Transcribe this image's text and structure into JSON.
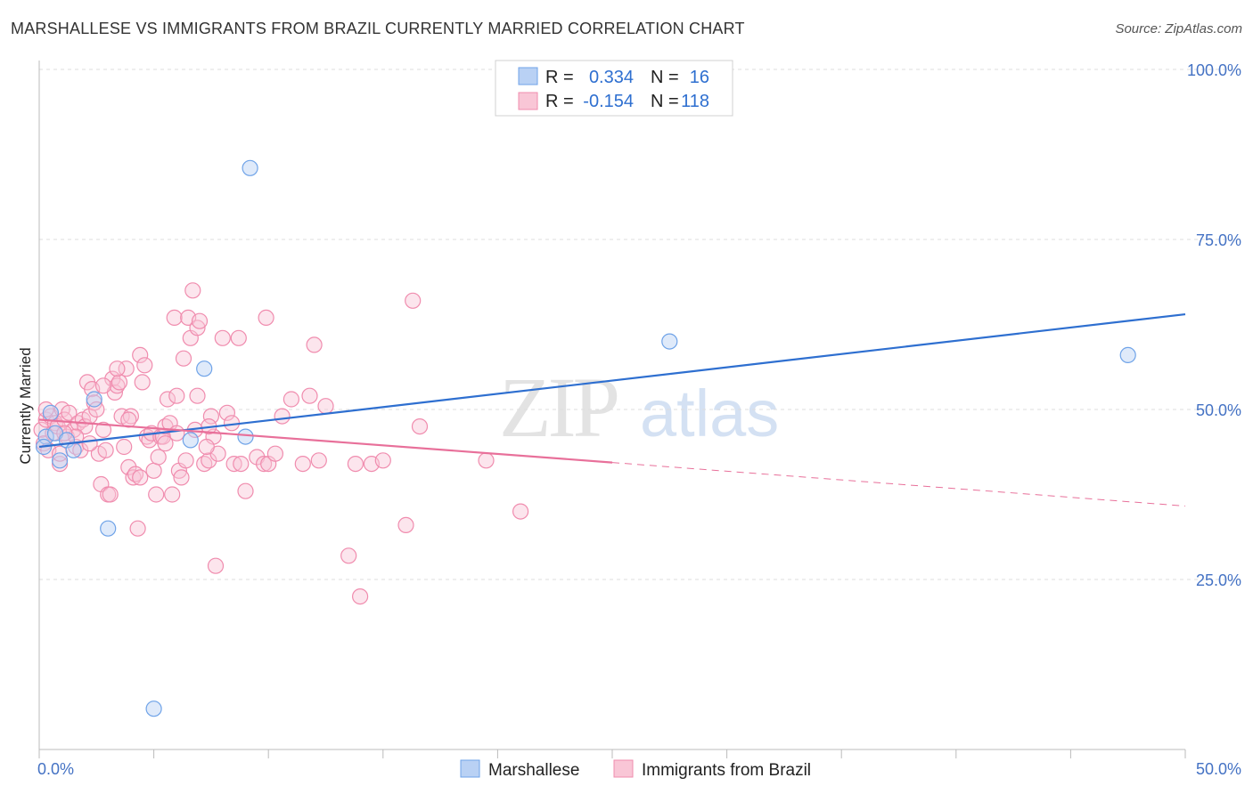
{
  "header": {
    "title": "MARSHALLESE VS IMMIGRANTS FROM BRAZIL CURRENTLY MARRIED CORRELATION CHART",
    "source": "Source: ZipAtlas.com"
  },
  "watermark": {
    "zip": "ZIP",
    "atlas": "atlas"
  },
  "chart_data": {
    "type": "scatter",
    "title": "MARSHALLESE VS IMMIGRANTS FROM BRAZIL CURRENTLY MARRIED CORRELATION CHART",
    "ylabel": "Currently Married",
    "xlabel": "",
    "xlim": [
      0,
      50
    ],
    "ylim": [
      0,
      105
    ],
    "x_tick_labels": [
      "0.0%",
      "50.0%"
    ],
    "y_ticks": [
      25,
      50,
      75,
      100
    ],
    "y_tick_labels": [
      "25.0%",
      "50.0%",
      "75.0%",
      "100.0%"
    ],
    "grid": true,
    "legend_top": [
      {
        "r_label": "R =",
        "r_value": "0.334",
        "n_label": "N =",
        "n_value": "16",
        "color": "#6fa3e8"
      },
      {
        "r_label": "R =",
        "r_value": "-0.154",
        "n_label": "N =",
        "n_value": "118",
        "color": "#f08cae"
      }
    ],
    "series": [
      {
        "name": "Marshallese",
        "color": "#6fa3e8",
        "line_color": "#2e6fd0",
        "trend": {
          "x0": 0,
          "y0": 44.5,
          "x1": 50,
          "y1": 64.0
        },
        "points": [
          [
            0.3,
            46
          ],
          [
            0.5,
            49.5
          ],
          [
            0.7,
            46.5
          ],
          [
            0.9,
            42.5
          ],
          [
            1.2,
            45.5
          ],
          [
            1.5,
            44
          ],
          [
            2.4,
            51.5
          ],
          [
            3.0,
            32.5
          ],
          [
            5.0,
            6
          ],
          [
            6.6,
            45.5
          ],
          [
            7.2,
            56
          ],
          [
            9.0,
            46
          ],
          [
            9.2,
            85.5
          ],
          [
            27.5,
            60
          ],
          [
            47.5,
            58
          ],
          [
            0.2,
            44.5
          ]
        ]
      },
      {
        "name": "Immigrants from Brazil",
        "color": "#f08cae",
        "line_color": "#e8709a",
        "trend": {
          "x0": 0,
          "y0": 48.5,
          "x1": 25,
          "y1": 42.2,
          "dash_x1": 50,
          "dash_y1": 35.8
        },
        "points": [
          [
            0.1,
            47
          ],
          [
            0.2,
            45
          ],
          [
            0.3,
            48.5
          ],
          [
            0.4,
            44
          ],
          [
            0.5,
            49
          ],
          [
            0.6,
            46.5
          ],
          [
            0.7,
            48
          ],
          [
            0.8,
            47.5
          ],
          [
            0.9,
            42
          ],
          [
            1.0,
            50
          ],
          [
            1.1,
            48.5
          ],
          [
            1.2,
            46
          ],
          [
            1.3,
            49.5
          ],
          [
            1.5,
            47
          ],
          [
            1.6,
            44.5
          ],
          [
            1.7,
            48
          ],
          [
            1.8,
            44
          ],
          [
            1.9,
            48.5
          ],
          [
            2.0,
            47.5
          ],
          [
            2.1,
            54
          ],
          [
            2.2,
            49
          ],
          [
            2.3,
            53
          ],
          [
            2.4,
            51
          ],
          [
            2.5,
            50
          ],
          [
            2.6,
            43.5
          ],
          [
            2.7,
            39
          ],
          [
            2.8,
            47
          ],
          [
            2.9,
            44
          ],
          [
            3.0,
            37.5
          ],
          [
            3.1,
            37.5
          ],
          [
            3.2,
            54.5
          ],
          [
            3.3,
            52.5
          ],
          [
            3.4,
            53.5
          ],
          [
            3.5,
            54
          ],
          [
            3.6,
            49
          ],
          [
            3.7,
            44.5
          ],
          [
            3.8,
            56
          ],
          [
            3.9,
            41.5
          ],
          [
            4.0,
            49
          ],
          [
            4.1,
            40
          ],
          [
            4.2,
            40.5
          ],
          [
            4.3,
            32.5
          ],
          [
            4.4,
            58
          ],
          [
            4.5,
            54
          ],
          [
            4.6,
            56.5
          ],
          [
            4.7,
            46
          ],
          [
            4.8,
            45.5
          ],
          [
            4.9,
            46.5
          ],
          [
            5.0,
            41
          ],
          [
            5.1,
            37.5
          ],
          [
            5.2,
            43
          ],
          [
            5.3,
            46
          ],
          [
            5.4,
            46
          ],
          [
            5.5,
            47.5
          ],
          [
            5.6,
            51.5
          ],
          [
            5.7,
            48
          ],
          [
            5.8,
            37.5
          ],
          [
            5.9,
            63.5
          ],
          [
            6.0,
            46.5
          ],
          [
            6.1,
            41
          ],
          [
            6.2,
            40
          ],
          [
            6.3,
            57.5
          ],
          [
            6.4,
            42.5
          ],
          [
            6.5,
            63.5
          ],
          [
            6.6,
            60.5
          ],
          [
            6.7,
            67.5
          ],
          [
            6.8,
            47
          ],
          [
            6.9,
            62
          ],
          [
            7.0,
            63
          ],
          [
            7.2,
            42
          ],
          [
            7.4,
            42.5
          ],
          [
            7.5,
            49
          ],
          [
            7.6,
            46
          ],
          [
            7.7,
            27
          ],
          [
            7.8,
            43.5
          ],
          [
            8.0,
            60.5
          ],
          [
            8.2,
            49.5
          ],
          [
            8.4,
            48
          ],
          [
            8.5,
            42
          ],
          [
            8.7,
            60.5
          ],
          [
            8.8,
            42
          ],
          [
            9.0,
            38
          ],
          [
            9.5,
            43
          ],
          [
            9.8,
            42
          ],
          [
            9.9,
            63.5
          ],
          [
            10.0,
            42
          ],
          [
            10.3,
            43.5
          ],
          [
            10.6,
            49
          ],
          [
            11.0,
            51.5
          ],
          [
            11.5,
            42
          ],
          [
            11.8,
            52
          ],
          [
            12.0,
            59.5
          ],
          [
            12.2,
            42.5
          ],
          [
            12.5,
            50.5
          ],
          [
            13.5,
            28.5
          ],
          [
            13.8,
            42
          ],
          [
            14.0,
            22.5
          ],
          [
            14.5,
            42
          ],
          [
            15.0,
            42.5
          ],
          [
            16.0,
            33
          ],
          [
            16.3,
            66
          ],
          [
            16.6,
            47.5
          ],
          [
            19.5,
            42.5
          ],
          [
            21.0,
            35
          ],
          [
            6.0,
            52
          ],
          [
            7.4,
            47.5
          ],
          [
            3.9,
            48.5
          ],
          [
            1.6,
            46
          ],
          [
            0.9,
            43.5
          ],
          [
            2.8,
            53.5
          ],
          [
            5.5,
            45
          ],
          [
            4.4,
            40
          ],
          [
            6.9,
            52
          ],
          [
            7.3,
            44.5
          ],
          [
            0.3,
            50
          ],
          [
            1.1,
            46.5
          ],
          [
            2.2,
            45
          ],
          [
            3.4,
            56
          ]
        ]
      }
    ]
  }
}
